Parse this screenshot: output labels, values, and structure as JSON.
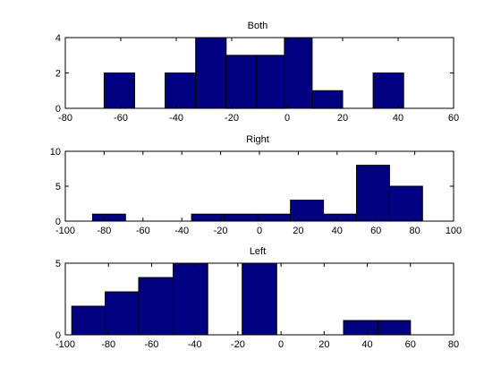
{
  "chart_data": [
    {
      "type": "bar",
      "title": "Both",
      "xlim": [
        -80,
        60
      ],
      "ylim": [
        0,
        4
      ],
      "xticks": [
        -80,
        -60,
        -40,
        -20,
        0,
        20,
        40,
        60
      ],
      "yticks": [
        0,
        2,
        4
      ],
      "bins": [
        {
          "x0": -66,
          "x1": -55,
          "value": 2
        },
        {
          "x0": -55,
          "x1": -44,
          "value": 0
        },
        {
          "x0": -44,
          "x1": -33,
          "value": 2
        },
        {
          "x0": -33,
          "x1": -22,
          "value": 4
        },
        {
          "x0": -22,
          "x1": -11,
          "value": 3
        },
        {
          "x0": -11,
          "x1": -1,
          "value": 3
        },
        {
          "x0": -1,
          "x1": 9,
          "value": 4
        },
        {
          "x0": 9,
          "x1": 20,
          "value": 1
        },
        {
          "x0": 20,
          "x1": 31,
          "value": 0
        },
        {
          "x0": 31,
          "x1": 42,
          "value": 2
        }
      ],
      "bar_color": "#000080",
      "edge_color": "#000000"
    },
    {
      "type": "bar",
      "title": "Right",
      "xlim": [
        -100,
        100
      ],
      "ylim": [
        0,
        10
      ],
      "xticks": [
        -100,
        -80,
        -60,
        -40,
        -20,
        0,
        20,
        40,
        60,
        80,
        100
      ],
      "yticks": [
        0,
        5,
        10
      ],
      "bins": [
        {
          "x0": -86,
          "x1": -69,
          "value": 1
        },
        {
          "x0": -69,
          "x1": -52,
          "value": 0
        },
        {
          "x0": -52,
          "x1": -35,
          "value": 0
        },
        {
          "x0": -35,
          "x1": -18,
          "value": 1
        },
        {
          "x0": -18,
          "x1": -1,
          "value": 1
        },
        {
          "x0": -1,
          "x1": 16,
          "value": 1
        },
        {
          "x0": 16,
          "x1": 33,
          "value": 3
        },
        {
          "x0": 33,
          "x1": 50,
          "value": 1
        },
        {
          "x0": 50,
          "x1": 67,
          "value": 8
        },
        {
          "x0": 67,
          "x1": 84,
          "value": 5
        }
      ],
      "bar_color": "#000080",
      "edge_color": "#000000"
    },
    {
      "type": "bar",
      "title": "Left",
      "xlim": [
        -100,
        80
      ],
      "ylim": [
        0,
        5
      ],
      "xticks": [
        -100,
        -80,
        -60,
        -40,
        -20,
        0,
        20,
        40,
        60,
        80
      ],
      "yticks": [
        0,
        5
      ],
      "bins": [
        {
          "x0": -97,
          "x1": -81.5,
          "value": 2
        },
        {
          "x0": -81.5,
          "x1": -66,
          "value": 3
        },
        {
          "x0": -66,
          "x1": -50,
          "value": 4
        },
        {
          "x0": -50,
          "x1": -34,
          "value": 5
        },
        {
          "x0": -34,
          "x1": -18,
          "value": 0
        },
        {
          "x0": -18,
          "x1": -2,
          "value": 5
        },
        {
          "x0": -2,
          "x1": 14,
          "value": 0
        },
        {
          "x0": 14,
          "x1": 29,
          "value": 0
        },
        {
          "x0": 29,
          "x1": 45,
          "value": 1
        },
        {
          "x0": 45,
          "x1": 60,
          "value": 1
        }
      ],
      "bar_color": "#000080",
      "edge_color": "#000000"
    }
  ]
}
